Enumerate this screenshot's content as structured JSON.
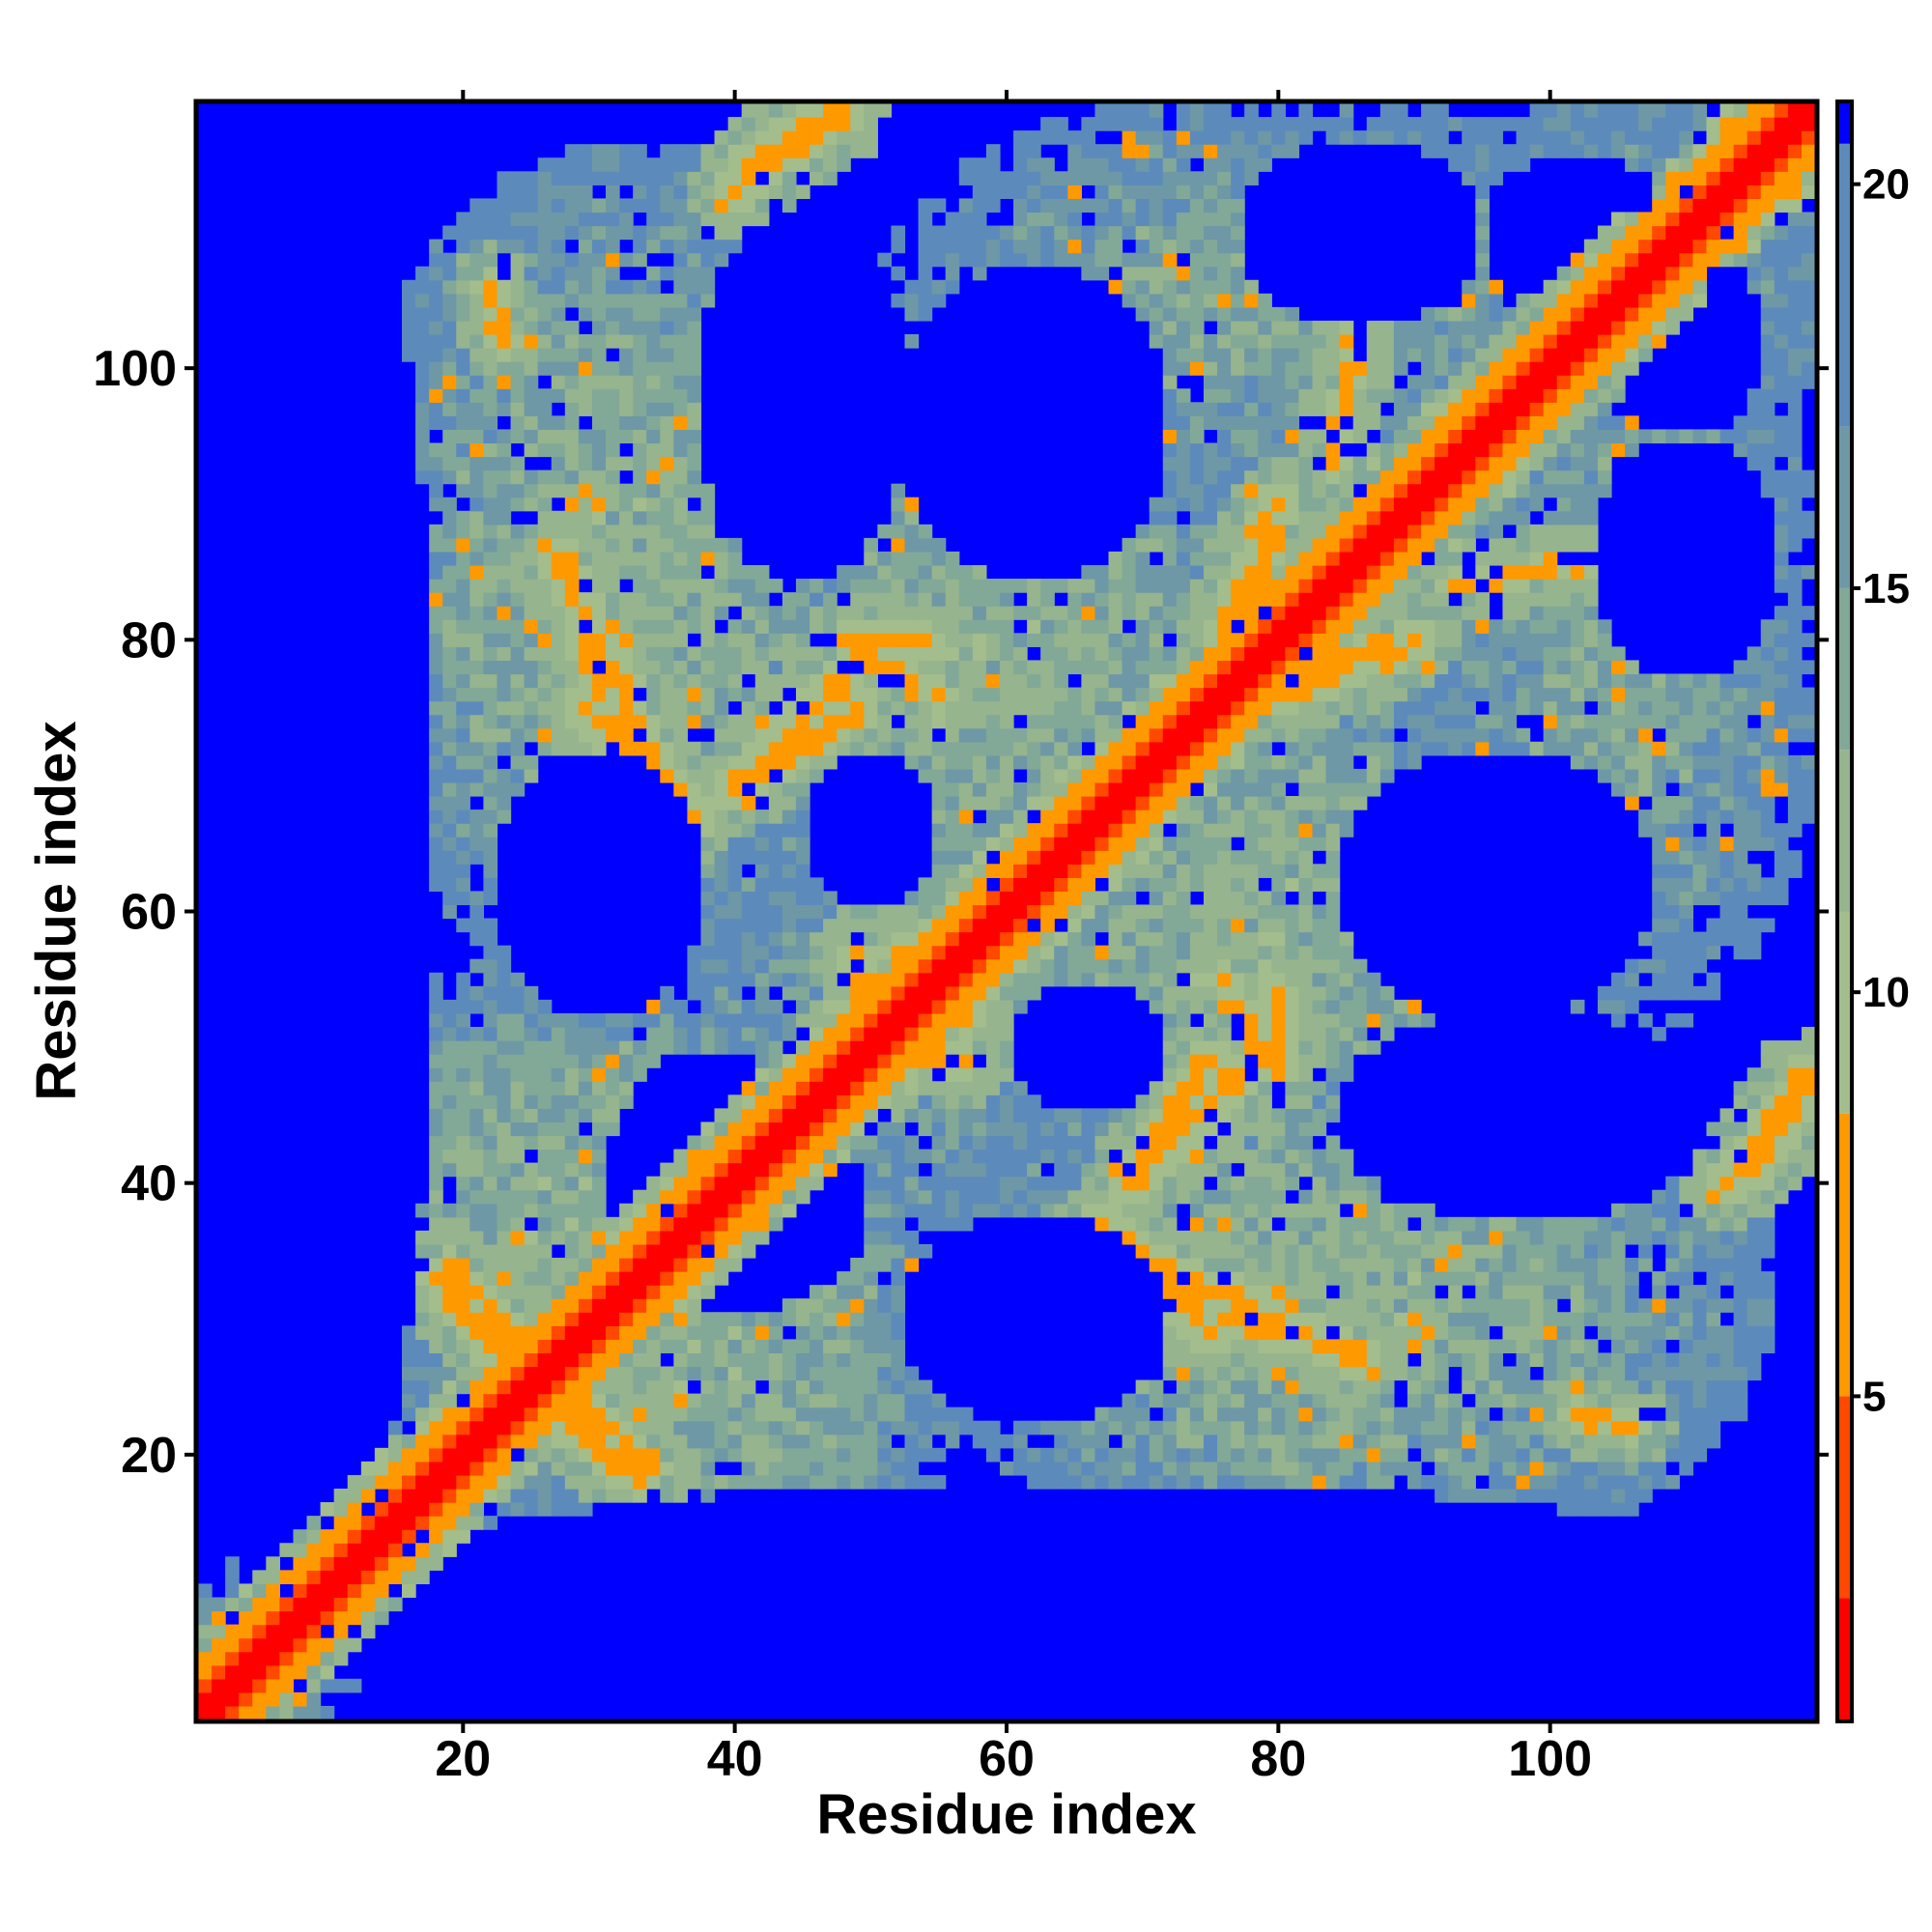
{
  "chart_data": {
    "type": "heatmap",
    "title": "",
    "xlabel": "Residue index",
    "ylabel": "Residue index",
    "xlim": [
      1,
      119
    ],
    "ylim": [
      1,
      119
    ],
    "x_ticks": [
      20,
      40,
      60,
      80,
      100
    ],
    "y_ticks": [
      20,
      40,
      60,
      80,
      100
    ],
    "n_residues": 119,
    "colorbar": {
      "range": [
        1,
        21
      ],
      "ticks": [
        5,
        10,
        15,
        20
      ],
      "colors": [
        {
          "upto": 2.5,
          "color": "#ff0000"
        },
        {
          "upto": 5,
          "color": "#ff4800"
        },
        {
          "upto": 8.5,
          "color": "#ff9900"
        },
        {
          "upto": 11,
          "color": "#a4bd8c"
        },
        {
          "upto": 13,
          "color": "#96b48e"
        },
        {
          "upto": 15,
          "color": "#82a898"
        },
        {
          "upto": 17,
          "color": "#6e98a6"
        },
        {
          "upto": 20.5,
          "color": "#5c8bbb"
        },
        {
          "upto": 999,
          "color": "#0000ff"
        }
      ]
    },
    "contact_segments": [
      {
        "from": [
          19,
          34
        ],
        "to": [
          25,
          27
        ],
        "value": 7,
        "width": 1.4
      },
      {
        "from": [
          26,
          24
        ],
        "to": [
          33,
          18
        ],
        "value": 7,
        "width": 1.4
      },
      {
        "from": [
          27,
          86
        ],
        "to": [
          35,
          69
        ],
        "value": 7,
        "width": 1.6
      },
      {
        "from": [
          41,
          70
        ],
        "to": [
          48,
          77
        ],
        "value": 7,
        "width": 1.6
      },
      {
        "from": [
          48,
          80
        ],
        "to": [
          54,
          80
        ],
        "value": 7,
        "width": 1.0
      },
      {
        "from": [
          41,
          115
        ],
        "to": [
          47,
          119
        ],
        "value": 7,
        "width": 1.6
      },
      {
        "from": [
          48,
          51
        ],
        "to": [
          57,
          49
        ],
        "value": 7,
        "width": 1.2
      },
      {
        "from": [
          52,
          57
        ],
        "to": [
          57,
          54
        ],
        "value": 7,
        "width": 1.2
      },
      {
        "from": [
          67,
          37
        ],
        "to": [
          75,
          29
        ],
        "value": 7,
        "width": 1.6
      },
      {
        "from": [
          76,
          30
        ],
        "to": [
          84,
          28
        ],
        "value": 7,
        "width": 1.4
      },
      {
        "from": [
          69,
          40
        ],
        "to": [
          75,
          49
        ],
        "value": 7,
        "width": 1.6
      },
      {
        "from": [
          76,
          55
        ],
        "to": [
          79,
          49
        ],
        "value": 7,
        "width": 1.2
      },
      {
        "from": [
          76,
          80
        ],
        "to": [
          80,
          90
        ],
        "value": 7,
        "width": 1.6
      },
      {
        "from": [
          82,
          78
        ],
        "to": [
          89,
          79
        ],
        "value": 7,
        "width": 1.0
      },
      {
        "from": [
          113,
          40
        ],
        "to": [
          119,
          48
        ],
        "value": 7,
        "width": 1.6
      },
      {
        "from": [
          102,
          23
        ],
        "to": [
          106,
          22
        ],
        "value": 7,
        "width": 1.0
      },
      {
        "from": [
          84,
          93
        ],
        "to": [
          86,
          104
        ],
        "value": 7,
        "width": 1.0
      }
    ],
    "background_regions": [
      {
        "center": [
          30,
          38
        ],
        "radius": [
          24,
          20
        ],
        "value": 13
      },
      {
        "center": [
          32,
          85
        ],
        "radius": [
          22,
          32
        ],
        "value": 13
      },
      {
        "center": [
          60,
          45
        ],
        "radius": [
          28,
          22
        ],
        "value": 13
      },
      {
        "center": [
          60,
          78
        ],
        "radius": [
          24,
          22
        ],
        "value": 13
      },
      {
        "center": [
          62,
          20
        ],
        "radius": [
          28,
          11
        ],
        "value": 14
      },
      {
        "center": [
          88,
          35
        ],
        "radius": [
          24,
          16
        ],
        "value": 13
      },
      {
        "center": [
          95,
          75
        ],
        "radius": [
          30,
          20
        ],
        "value": 14
      },
      {
        "center": [
          80,
          105
        ],
        "radius": [
          30,
          16
        ],
        "value": 14
      },
      {
        "center": [
          105,
          100
        ],
        "radius": [
          16,
          22
        ],
        "value": 14
      },
      {
        "center": [
          110,
          55
        ],
        "radius": [
          12,
          14
        ],
        "value": 14
      },
      {
        "center": [
          105,
          28
        ],
        "radius": [
          16,
          10
        ],
        "value": 15
      }
    ],
    "empty_regions": [
      {
        "center": [
          8,
          65
        ],
        "radius": [
          10,
          60
        ],
        "value": 25
      },
      {
        "center": [
          60,
          6
        ],
        "radius": [
          60,
          6
        ],
        "value": 25
      },
      {
        "center": [
          38,
          38
        ],
        "radius": [
          8,
          12
        ],
        "value": 25
      },
      {
        "center": [
          30,
          62
        ],
        "radius": [
          8,
          10
        ],
        "value": 25
      },
      {
        "center": [
          45,
          98
        ],
        "radius": [
          8,
          14
        ],
        "value": 25
      },
      {
        "center": [
          62,
          96
        ],
        "radius": [
          10,
          12
        ],
        "value": 25
      },
      {
        "center": [
          86,
          110
        ],
        "radius": [
          9,
          7
        ],
        "value": 25
      },
      {
        "center": [
          102,
          110
        ],
        "radius": [
          7,
          6
        ],
        "value": 25
      },
      {
        "center": [
          112,
          92
        ],
        "radius": [
          6,
          10
        ],
        "value": 25
      },
      {
        "center": [
          95,
          65
        ],
        "radius": [
          14,
          10
        ],
        "value": 25
      },
      {
        "center": [
          104,
          48
        ],
        "radius": [
          10,
          6
        ],
        "value": 25
      },
      {
        "center": [
          88,
          44
        ],
        "radius": [
          10,
          6
        ],
        "value": 25
      },
      {
        "center": [
          55,
          44
        ],
        "radius": [
          7,
          6
        ],
        "value": 25
      },
      {
        "center": [
          75,
          22
        ],
        "radius": [
          10,
          8
        ],
        "value": 25
      },
      {
        "center": [
          48,
          20
        ],
        "radius": [
          8,
          7
        ],
        "value": 25
      },
      {
        "center": [
          114,
          30
        ],
        "radius": [
          5,
          12
        ],
        "value": 25
      },
      {
        "center": [
          72,
          60
        ],
        "radius": [
          8,
          8
        ],
        "value": 25
      },
      {
        "center": [
          50,
          66
        ],
        "radius": [
          5,
          6
        ],
        "value": 25
      }
    ]
  }
}
